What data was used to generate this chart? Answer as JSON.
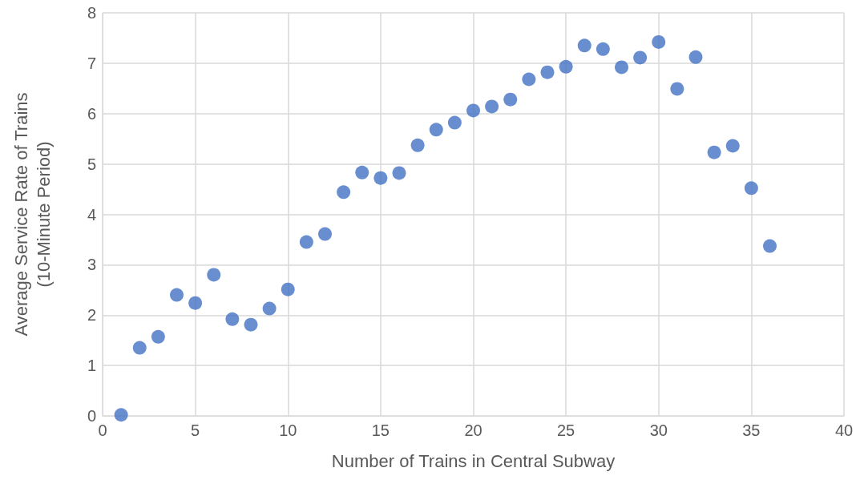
{
  "chart_data": {
    "type": "scatter",
    "xlabel": "Number of Trains in Central Subway",
    "ylabel": "Average Service Rate of Trains\n(10-Minute Period)",
    "x": [
      1,
      2,
      3,
      4,
      5,
      6,
      7,
      8,
      9,
      10,
      11,
      12,
      13,
      14,
      15,
      16,
      17,
      18,
      19,
      20,
      21,
      22,
      23,
      24,
      25,
      26,
      27,
      28,
      29,
      30,
      31,
      32,
      33,
      34,
      35,
      36
    ],
    "series": [
      {
        "color": "#4472c4",
        "values": [
          0.02,
          1.35,
          1.57,
          2.4,
          2.24,
          2.8,
          1.92,
          1.81,
          2.13,
          2.51,
          3.45,
          3.61,
          4.44,
          4.83,
          4.72,
          4.82,
          5.37,
          5.68,
          5.82,
          6.06,
          6.14,
          6.28,
          6.68,
          6.82,
          6.93,
          7.35,
          7.28,
          6.92,
          7.11,
          7.42,
          6.49,
          7.12,
          5.23,
          5.36,
          4.52,
          3.37
        ]
      }
    ],
    "xlim": [
      0,
      40
    ],
    "xticks": [
      0,
      5,
      10,
      15,
      20,
      25,
      30,
      35,
      40
    ],
    "ylim": [
      0,
      8
    ],
    "yticks": [
      0,
      1,
      2,
      3,
      4,
      5,
      6,
      7,
      8
    ],
    "grid": true,
    "marker": "circle"
  }
}
